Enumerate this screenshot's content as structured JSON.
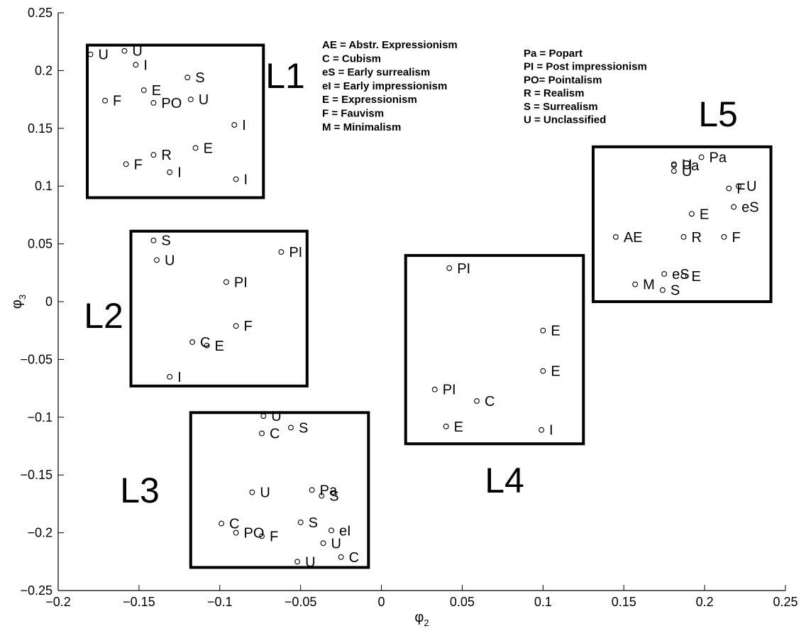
{
  "chart_data": {
    "type": "scatter",
    "xlabel": "φ",
    "xlabel_sub": "2",
    "ylabel": "φ",
    "ylabel_sub": "3",
    "xlim": [
      -0.2,
      0.25
    ],
    "ylim": [
      -0.25,
      0.25
    ],
    "xticks": [
      -0.2,
      -0.15,
      -0.1,
      -0.05,
      0,
      0.05,
      0.1,
      0.15,
      0.2,
      0.25
    ],
    "xtick_labels": [
      "−0.2",
      "−0.15",
      "−0.1",
      "−0.05",
      "0",
      "0.05",
      "0.1",
      "0.15",
      "0.2",
      "0.25"
    ],
    "yticks": [
      -0.25,
      -0.2,
      -0.15,
      -0.1,
      -0.05,
      0,
      0.05,
      0.1,
      0.15,
      0.2,
      0.25
    ],
    "ytick_labels": [
      "−0.25",
      "−0.2",
      "−0.15",
      "−0.1",
      "−0.05",
      "0",
      "0.05",
      "0.1",
      "0.15",
      "0.2",
      "0.25"
    ],
    "grid": false,
    "legend_left": [
      "AE = Abstr. Expressionism",
      "C   = Cubism",
      "eS = Early surrealism",
      "eI  = Early impressionism",
      "E   = Expressionism",
      "F   = Fauvism",
      "M  = Minimalism"
    ],
    "legend_right": [
      "Pa = Popart",
      "PI  = Post impressionism",
      "PO= Pointalism",
      "R    = Realism",
      "S    = Surrealism",
      "U   = Unclassified"
    ],
    "clusters": [
      {
        "label": "L1",
        "x0": -0.182,
        "x1": -0.073,
        "y0": 0.09,
        "y1": 0.222
      },
      {
        "label": "L2",
        "x0": -0.155,
        "x1": -0.046,
        "y0": -0.073,
        "y1": 0.061
      },
      {
        "label": "L3",
        "x0": -0.118,
        "x1": -0.008,
        "y0": -0.23,
        "y1": -0.096
      },
      {
        "label": "L4",
        "x0": 0.015,
        "x1": 0.125,
        "y0": -0.123,
        "y1": 0.04
      },
      {
        "label": "L5",
        "x0": 0.131,
        "x1": 0.241,
        "y0": 0,
        "y1": 0.134
      }
    ],
    "points": [
      {
        "x": -0.18,
        "y": 0.214,
        "label": "U"
      },
      {
        "x": -0.159,
        "y": 0.217,
        "label": "U"
      },
      {
        "x": -0.152,
        "y": 0.205,
        "label": "I"
      },
      {
        "x": -0.12,
        "y": 0.194,
        "label": "S"
      },
      {
        "x": -0.147,
        "y": 0.183,
        "label": "E"
      },
      {
        "x": -0.171,
        "y": 0.174,
        "label": "F"
      },
      {
        "x": -0.141,
        "y": 0.172,
        "label": "PO"
      },
      {
        "x": -0.118,
        "y": 0.175,
        "label": "U"
      },
      {
        "x": -0.091,
        "y": 0.153,
        "label": "I"
      },
      {
        "x": -0.115,
        "y": 0.133,
        "label": "E"
      },
      {
        "x": -0.141,
        "y": 0.127,
        "label": "R"
      },
      {
        "x": -0.158,
        "y": 0.119,
        "label": "F"
      },
      {
        "x": -0.131,
        "y": 0.112,
        "label": "I"
      },
      {
        "x": -0.09,
        "y": 0.106,
        "label": "I"
      },
      {
        "x": -0.141,
        "y": 0.053,
        "label": "S"
      },
      {
        "x": -0.139,
        "y": 0.036,
        "label": "U"
      },
      {
        "x": -0.062,
        "y": 0.043,
        "label": "PI"
      },
      {
        "x": -0.096,
        "y": 0.017,
        "label": "PI"
      },
      {
        "x": -0.09,
        "y": -0.021,
        "label": "F"
      },
      {
        "x": -0.117,
        "y": -0.035,
        "label": "C"
      },
      {
        "x": -0.108,
        "y": -0.038,
        "label": "E"
      },
      {
        "x": -0.131,
        "y": -0.065,
        "label": "I"
      },
      {
        "x": -0.073,
        "y": -0.099,
        "label": "U"
      },
      {
        "x": -0.074,
        "y": -0.114,
        "label": "C"
      },
      {
        "x": -0.056,
        "y": -0.109,
        "label": "S"
      },
      {
        "x": -0.08,
        "y": -0.165,
        "label": "U"
      },
      {
        "x": -0.043,
        "y": -0.163,
        "label": "Pa"
      },
      {
        "x": -0.037,
        "y": -0.168,
        "label": "S"
      },
      {
        "x": -0.099,
        "y": -0.192,
        "label": "C"
      },
      {
        "x": -0.09,
        "y": -0.2,
        "label": "PO"
      },
      {
        "x": -0.074,
        "y": -0.203,
        "label": "F"
      },
      {
        "x": -0.05,
        "y": -0.191,
        "label": "S"
      },
      {
        "x": -0.031,
        "y": -0.198,
        "label": "eI"
      },
      {
        "x": -0.036,
        "y": -0.209,
        "label": "U"
      },
      {
        "x": -0.052,
        "y": -0.225,
        "label": "U"
      },
      {
        "x": -0.025,
        "y": -0.221,
        "label": "C"
      },
      {
        "x": 0.042,
        "y": 0.029,
        "label": "PI"
      },
      {
        "x": 0.1,
        "y": -0.025,
        "label": "E"
      },
      {
        "x": 0.1,
        "y": -0.06,
        "label": "E"
      },
      {
        "x": 0.033,
        "y": -0.076,
        "label": "PI"
      },
      {
        "x": 0.059,
        "y": -0.086,
        "label": "C"
      },
      {
        "x": 0.04,
        "y": -0.108,
        "label": "E"
      },
      {
        "x": 0.099,
        "y": -0.111,
        "label": "I"
      },
      {
        "x": 0.181,
        "y": 0.119,
        "label": "U"
      },
      {
        "x": 0.181,
        "y": 0.118,
        "label": "Pa"
      },
      {
        "x": 0.181,
        "y": 0.113,
        "label": "U"
      },
      {
        "x": 0.198,
        "y": 0.125,
        "label": "Pa"
      },
      {
        "x": 0.221,
        "y": 0.1,
        "label": "U"
      },
      {
        "x": 0.215,
        "y": 0.098,
        "label": "F"
      },
      {
        "x": 0.218,
        "y": 0.082,
        "label": "eS"
      },
      {
        "x": 0.192,
        "y": 0.076,
        "label": "E"
      },
      {
        "x": 0.145,
        "y": 0.056,
        "label": "AE"
      },
      {
        "x": 0.187,
        "y": 0.056,
        "label": "R"
      },
      {
        "x": 0.212,
        "y": 0.056,
        "label": "F"
      },
      {
        "x": 0.175,
        "y": 0.024,
        "label": "eS"
      },
      {
        "x": 0.157,
        "y": 0.015,
        "label": "M"
      },
      {
        "x": 0.187,
        "y": 0.022,
        "label": "E"
      },
      {
        "x": 0.174,
        "y": 0.01,
        "label": "S"
      }
    ]
  }
}
